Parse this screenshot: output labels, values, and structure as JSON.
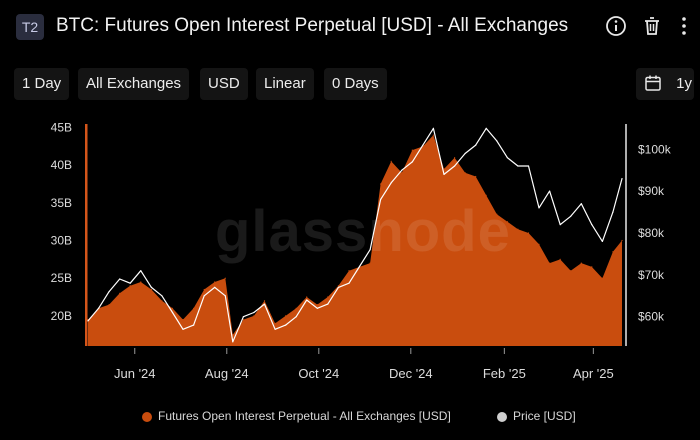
{
  "header": {
    "tag": "T2",
    "title": "BTC: Futures Open Interest Perpetual [USD] - All Exchanges",
    "icons": [
      "info-icon",
      "trash-icon",
      "more-vertical-icon"
    ]
  },
  "toolbar": {
    "resolution": "1 Day",
    "exchange": "All Exchanges",
    "currency": "USD",
    "scale": "Linear",
    "moving_average": "0 Days",
    "range": "1y"
  },
  "watermark": "glassnode",
  "colors": {
    "open_interest": "#c94d0e",
    "price": "#ffffff",
    "accent_bar": "#d4551a",
    "background": "#000000"
  },
  "legend": {
    "open_interest": "Futures Open Interest Perpetual - All Exchanges [USD]",
    "price": "Price [USD]"
  },
  "chart_data": {
    "type": "area",
    "x_tick_labels": [
      "Jun '24",
      "Aug '24",
      "Oct '24",
      "Dec '24",
      "Feb '25",
      "Apr '25"
    ],
    "y_left_ticks": [
      "45B",
      "40B",
      "35B",
      "30B",
      "25B",
      "20B"
    ],
    "y_right_ticks": [
      "$100k",
      "$90k",
      "$80k",
      "$70k",
      "$60k"
    ],
    "y_left_range": [
      16000000000,
      46000000000
    ],
    "y_right_range": [
      53000,
      107000
    ],
    "x_range": [
      "2024-05-01",
      "2025-04-20"
    ],
    "grid": false,
    "legend_position": "bottom",
    "series": [
      {
        "name": "Futures Open Interest Perpetual - All Exchanges [USD]",
        "axis": "left",
        "x": [
          "2024-05-01",
          "2024-05-08",
          "2024-05-15",
          "2024-05-22",
          "2024-05-29",
          "2024-06-05",
          "2024-06-12",
          "2024-06-19",
          "2024-06-26",
          "2024-07-03",
          "2024-07-10",
          "2024-07-17",
          "2024-07-24",
          "2024-07-31",
          "2024-08-05",
          "2024-08-12",
          "2024-08-19",
          "2024-08-26",
          "2024-09-02",
          "2024-09-09",
          "2024-09-16",
          "2024-09-23",
          "2024-09-30",
          "2024-10-07",
          "2024-10-14",
          "2024-10-21",
          "2024-10-28",
          "2024-11-04",
          "2024-11-11",
          "2024-11-18",
          "2024-11-25",
          "2024-12-02",
          "2024-12-09",
          "2024-12-16",
          "2024-12-23",
          "2024-12-30",
          "2025-01-06",
          "2025-01-13",
          "2025-01-20",
          "2025-01-27",
          "2025-02-03",
          "2025-02-10",
          "2025-02-17",
          "2025-02-24",
          "2025-03-03",
          "2025-03-10",
          "2025-03-17",
          "2025-03-24",
          "2025-03-31",
          "2025-04-07",
          "2025-04-14",
          "2025-04-20"
        ],
        "values": [
          19.5,
          21.0,
          21.5,
          23.0,
          24.0,
          24.5,
          23.5,
          22.0,
          21.0,
          19.5,
          21.0,
          23.5,
          24.5,
          25.0,
          17.5,
          19.5,
          20.0,
          22.0,
          19.0,
          20.0,
          21.0,
          22.5,
          21.5,
          22.5,
          24.0,
          26.0,
          26.5,
          27.0,
          37.5,
          40.5,
          39.0,
          42.0,
          42.5,
          44.0,
          39.5,
          41.0,
          39.0,
          38.5,
          36.0,
          33.5,
          32.5,
          31.5,
          31.0,
          29.5,
          27.0,
          27.5,
          26.0,
          27.0,
          26.5,
          25.0,
          28.5,
          30.0
        ],
        "unit": "B USD"
      },
      {
        "name": "Price [USD]",
        "axis": "right",
        "x": [
          "2024-05-01",
          "2024-05-08",
          "2024-05-15",
          "2024-05-22",
          "2024-05-29",
          "2024-06-05",
          "2024-06-12",
          "2024-06-19",
          "2024-06-26",
          "2024-07-03",
          "2024-07-10",
          "2024-07-17",
          "2024-07-24",
          "2024-07-31",
          "2024-08-05",
          "2024-08-12",
          "2024-08-19",
          "2024-08-26",
          "2024-09-02",
          "2024-09-09",
          "2024-09-16",
          "2024-09-23",
          "2024-09-30",
          "2024-10-07",
          "2024-10-14",
          "2024-10-21",
          "2024-10-28",
          "2024-11-04",
          "2024-11-11",
          "2024-11-18",
          "2024-11-25",
          "2024-12-02",
          "2024-12-09",
          "2024-12-16",
          "2024-12-23",
          "2024-12-30",
          "2025-01-06",
          "2025-01-13",
          "2025-01-20",
          "2025-01-27",
          "2025-02-03",
          "2025-02-10",
          "2025-02-17",
          "2025-02-24",
          "2025-03-03",
          "2025-03-10",
          "2025-03-17",
          "2025-03-24",
          "2025-03-31",
          "2025-04-07",
          "2025-04-14",
          "2025-04-20"
        ],
        "values": [
          59000,
          62000,
          66000,
          69000,
          68000,
          71000,
          67000,
          65000,
          61000,
          57000,
          58000,
          65000,
          67000,
          65000,
          54000,
          60000,
          61000,
          63000,
          57000,
          58000,
          60000,
          64000,
          62000,
          63000,
          67000,
          68000,
          72000,
          76000,
          88000,
          92000,
          95000,
          97000,
          101000,
          105000,
          94000,
          96000,
          99000,
          101000,
          105000,
          102000,
          98000,
          96000,
          96000,
          86000,
          90000,
          82000,
          84000,
          87000,
          82000,
          78000,
          85000,
          93000
        ],
        "unit": "USD"
      }
    ]
  }
}
